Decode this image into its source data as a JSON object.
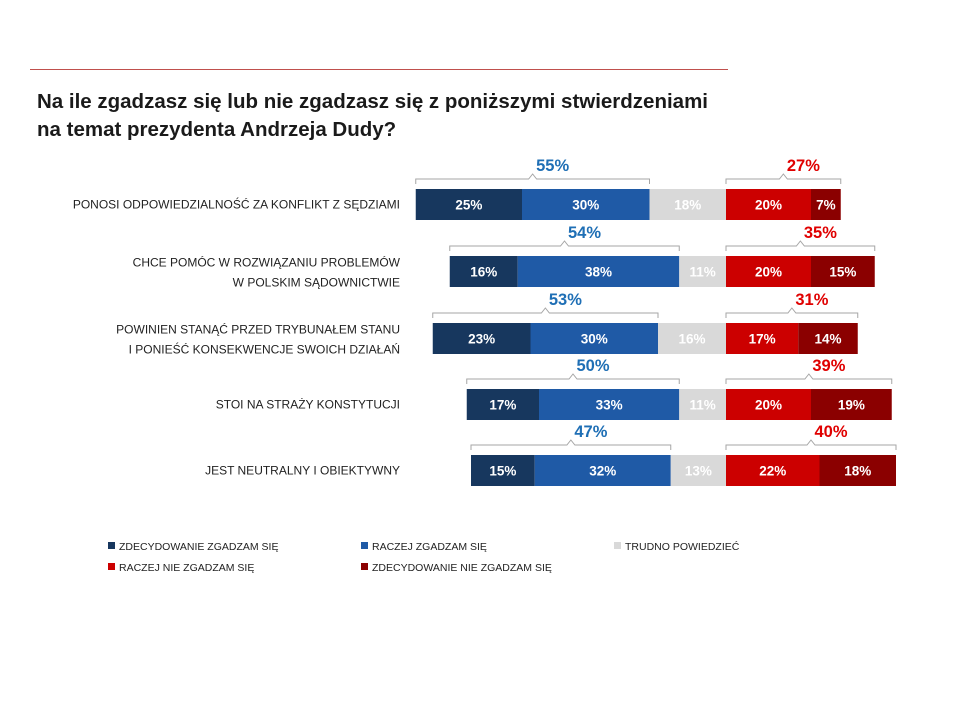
{
  "title": "Na ile zgadzasz się lub nie zgadzasz się z poniższymi stwierdzeniami na temat prezydenta Andrzeja Dudy?",
  "colors": {
    "strong_agree": "#17375e",
    "agree": "#1f5aa6",
    "unsure": "#d9d9d9",
    "disagree": "#cc0000",
    "strong_disagree": "#8b0000",
    "agree_total_text": "#1f6fb5",
    "disagree_total_text": "#e00000",
    "bracket": "#a6a6a6"
  },
  "chart_data": {
    "type": "bar",
    "orientation": "horizontal-stacked-diverging",
    "title": "Na ile zgadzasz się lub nie zgadzasz się z poniższymi stwierdzeniami na temat prezydenta Andrzeja Dudy?",
    "categories": [
      [
        "PONOSI ODPOWIEDZIALNOŚĆ ZA KONFLIKT Z SĘDZIAMI"
      ],
      [
        "CHCE POMÓC W ROZWIĄZANIU PROBLEMÓW",
        "W POLSKIM SĄDOWNICTWIE"
      ],
      [
        "POWINIEN STANĄĆ PRZED TRYBUNAŁEM STANU",
        "I PONIEŚĆ KONSEKWENCJE SWOICH DZIAŁAŃ"
      ],
      [
        "STOI NA STRAŻY KONSTYTUCJI"
      ],
      [
        "JEST NEUTRALNY I OBIEKTYWNY"
      ]
    ],
    "series": [
      {
        "name": "ZDECYDOWANIE ZGADZAM SIĘ",
        "key": "strong_agree",
        "values": [
          25,
          16,
          23,
          17,
          15
        ]
      },
      {
        "name": "RACZEJ ZGADZAM SIĘ",
        "key": "agree",
        "values": [
          30,
          38,
          30,
          33,
          32
        ]
      },
      {
        "name": "TRUDNO POWIEDZIEĆ",
        "key": "unsure",
        "values": [
          18,
          11,
          16,
          11,
          13
        ]
      },
      {
        "name": "RACZEJ NIE ZGADZAM SIĘ",
        "key": "disagree",
        "values": [
          20,
          20,
          17,
          20,
          22
        ]
      },
      {
        "name": "ZDECYDOWANIE NIE ZGADZAM SIĘ",
        "key": "strong_disagree",
        "values": [
          7,
          15,
          14,
          19,
          18
        ]
      }
    ],
    "agree_totals": [
      55,
      54,
      53,
      50,
      47
    ],
    "disagree_totals": [
      27,
      35,
      31,
      39,
      40
    ],
    "value_suffix": "%",
    "legend_position": "bottom"
  }
}
